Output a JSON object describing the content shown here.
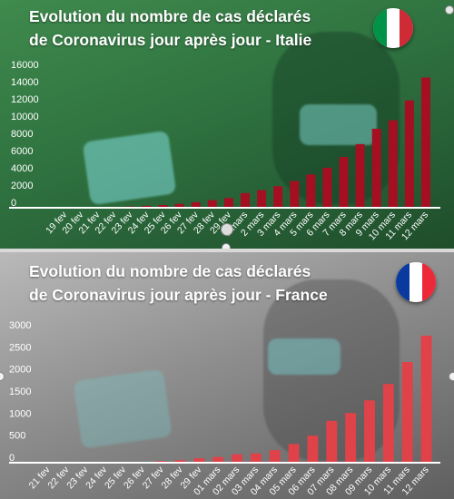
{
  "chart_data": [
    {
      "type": "bar",
      "title": "Evolution du nombre de cas déclarés de Coronavirus jour après jour - Italie",
      "title_lines": [
        "Evolution du nombre de cas déclarés",
        "de Coronavirus jour après jour - Italie"
      ],
      "categories": [
        "19 fev",
        "20 fev",
        "21 fev",
        "22 fev",
        "23 fev",
        "24 fev",
        "25 fev",
        "26 fev",
        "27 fev",
        "28 fev",
        "29 fev",
        "1 mars",
        "2 mars",
        "3 mars",
        "4 mars",
        "5 mars",
        "6 mars",
        "7 mars",
        "8 mars",
        "9 mars",
        "10 mars",
        "11 mars",
        "12 mars"
      ],
      "values": [
        0,
        0,
        20,
        80,
        150,
        230,
        320,
        450,
        650,
        890,
        1130,
        1700,
        2040,
        2500,
        3100,
        3860,
        4640,
        5880,
        7380,
        9170,
        10150,
        12460,
        15110
      ],
      "ylim": [
        0,
        16000
      ],
      "yticks": [
        0,
        2000,
        4000,
        6000,
        8000,
        10000,
        12000,
        14000,
        16000
      ],
      "grid": false,
      "colors": {
        "bar": "#a50f22",
        "text": "#ffffff",
        "axis": "#ffffff"
      },
      "flag": {
        "name": "italy-flag",
        "colors": [
          "#009246",
          "#ffffff",
          "#ce2b37"
        ]
      }
    },
    {
      "type": "bar",
      "title": "Evolution du nombre de cas déclarés de Coronavirus jour après jour - France",
      "title_lines": [
        "Evolution du nombre de cas déclarés",
        "de Coronavirus jour après jour - France"
      ],
      "categories": [
        "21 fev",
        "22 fev",
        "23 fev",
        "24 fev",
        "25 fev",
        "26 fev",
        "27 fev",
        "28 fev",
        "29 fev",
        "01 mars",
        "02 mars",
        "03 mars",
        "04 mars",
        "05 mars",
        "06 mars",
        "07 mars",
        "08 mars",
        "09 mars",
        "10 mars",
        "11 mars",
        "12 mars"
      ],
      "values": [
        12,
        12,
        12,
        12,
        14,
        18,
        38,
        57,
        100,
        130,
        191,
        212,
        285,
        423,
        613,
        949,
        1126,
        1412,
        1784,
        2281,
        2876
      ],
      "ylim": [
        0,
        3000
      ],
      "yticks": [
        0,
        500,
        1000,
        1500,
        2000,
        2500,
        3000
      ],
      "grid": false,
      "colors": {
        "bar": "#e0424a",
        "text": "#ffffff",
        "axis": "#ffffff"
      },
      "flag": {
        "name": "france-flag",
        "colors": [
          "#0a3a9e",
          "#ffffff",
          "#ed2939"
        ]
      }
    }
  ]
}
